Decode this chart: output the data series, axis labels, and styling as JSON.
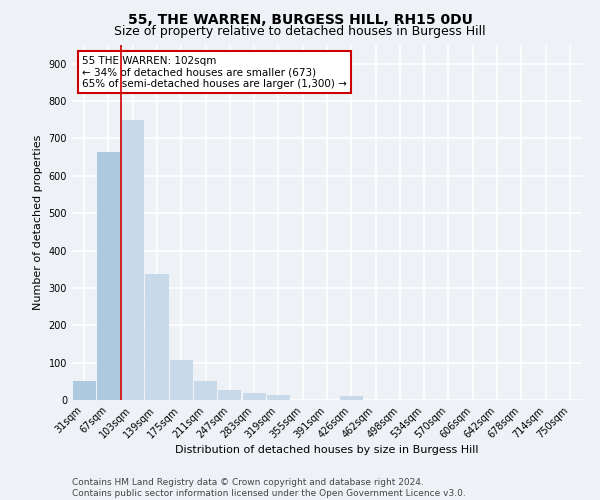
{
  "title": "55, THE WARREN, BURGESS HILL, RH15 0DU",
  "subtitle": "Size of property relative to detached houses in Burgess Hill",
  "xlabel": "Distribution of detached houses by size in Burgess Hill",
  "ylabel": "Number of detached properties",
  "categories": [
    "31sqm",
    "67sqm",
    "103sqm",
    "139sqm",
    "175sqm",
    "211sqm",
    "247sqm",
    "283sqm",
    "319sqm",
    "355sqm",
    "391sqm",
    "426sqm",
    "462sqm",
    "498sqm",
    "534sqm",
    "570sqm",
    "606sqm",
    "642sqm",
    "678sqm",
    "714sqm",
    "750sqm"
  ],
  "values": [
    52,
    665,
    750,
    337,
    108,
    52,
    26,
    18,
    13,
    0,
    0,
    10,
    0,
    0,
    0,
    0,
    0,
    0,
    0,
    0,
    0
  ],
  "bar_color_left": "#aec8e0",
  "bar_color_highlight": "#c8daea",
  "property_line_x": 2,
  "annotation_text": "55 THE WARREN: 102sqm\n← 34% of detached houses are smaller (673)\n65% of semi-detached houses are larger (1,300) →",
  "annotation_box_color": "#ffffff",
  "annotation_box_edgecolor": "#cc0000",
  "vline_color": "#cc0000",
  "ylim": [
    0,
    950
  ],
  "yticks": [
    0,
    100,
    200,
    300,
    400,
    500,
    600,
    700,
    800,
    900
  ],
  "footer_line1": "Contains HM Land Registry data © Crown copyright and database right 2024.",
  "footer_line2": "Contains public sector information licensed under the Open Government Licence v3.0.",
  "bg_color": "#eef2f7",
  "plot_bg_color": "#eef2f7",
  "grid_color": "#ffffff",
  "title_fontsize": 10,
  "subtitle_fontsize": 9,
  "axis_label_fontsize": 8,
  "tick_fontsize": 7,
  "footer_fontsize": 6.5
}
